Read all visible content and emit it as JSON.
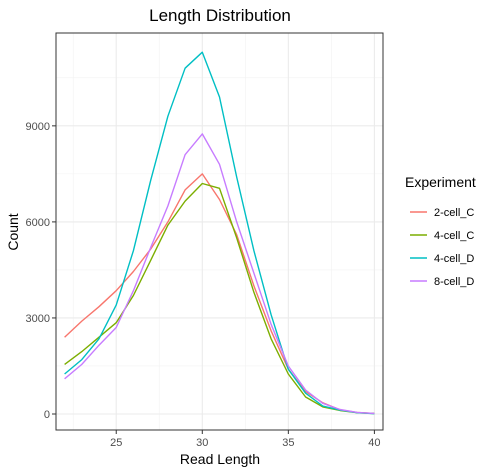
{
  "chart_data": {
    "type": "line",
    "title": "Length Distribution",
    "xlabel": "Read Length",
    "ylabel": "Count",
    "xlim": [
      21.5,
      40.5
    ],
    "ylim": [
      -500,
      11900
    ],
    "xticks": [
      25,
      30,
      35,
      40
    ],
    "xtick_labels": [
      "25",
      "30",
      "35",
      "40"
    ],
    "yticks": [
      0,
      3000,
      6000,
      9000
    ],
    "ytick_labels": [
      "0",
      "3000",
      "6000",
      "9000"
    ],
    "grid": true,
    "legend": {
      "title": "Experiment",
      "position": "right"
    },
    "x": [
      22,
      23,
      24,
      25,
      26,
      27,
      28,
      29,
      30,
      31,
      32,
      33,
      34,
      35,
      36,
      37,
      38,
      39,
      40
    ],
    "series": [
      {
        "name": "2-cell_C",
        "color": "#F8766D",
        "values": [
          2400,
          2900,
          3350,
          3850,
          4450,
          5150,
          6000,
          7000,
          7500,
          6700,
          5600,
          4000,
          2600,
          1400,
          700,
          350,
          130,
          50,
          20
        ]
      },
      {
        "name": "4-cell_C",
        "color": "#7CAE00",
        "values": [
          1550,
          1950,
          2400,
          2850,
          3700,
          4800,
          5900,
          6650,
          7200,
          7050,
          5500,
          3800,
          2350,
          1250,
          530,
          220,
          110,
          40,
          15
        ]
      },
      {
        "name": "4-cell_D",
        "color": "#00BFC4",
        "values": [
          1250,
          1700,
          2350,
          3400,
          5100,
          7300,
          9300,
          10800,
          11300,
          9900,
          7400,
          5100,
          3100,
          1400,
          650,
          250,
          120,
          40,
          10
        ]
      },
      {
        "name": "8-cell_D",
        "color": "#C77CFF",
        "values": [
          1100,
          1550,
          2150,
          2700,
          3850,
          5200,
          6500,
          8100,
          8750,
          7800,
          6000,
          4400,
          2800,
          1500,
          750,
          330,
          140,
          50,
          20
        ]
      }
    ]
  }
}
